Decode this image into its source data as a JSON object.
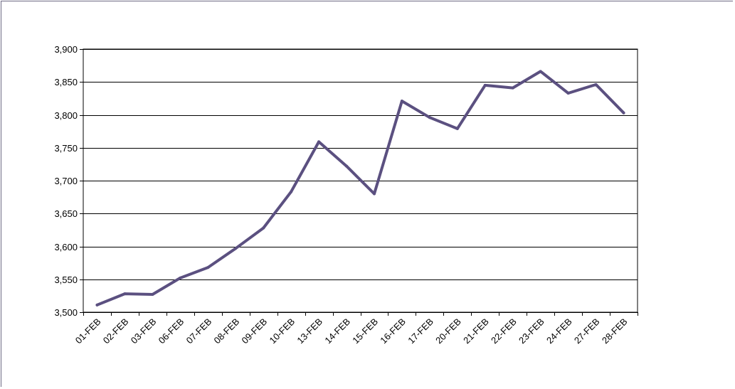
{
  "chart_data": {
    "type": "line",
    "title": "",
    "xlabel": "",
    "ylabel": "",
    "categories": [
      "01-FEB",
      "02-FEB",
      "03-FEB",
      "06-FEB",
      "07-FEB",
      "08-FEB",
      "09-FEB",
      "10-FEB",
      "13-FEB",
      "14-FEB",
      "15-FEB",
      "16-FEB",
      "17-FEB",
      "20-FEB",
      "21-FEB",
      "22-FEB",
      "23-FEB",
      "24-FEB",
      "27-FEB",
      "28-FEB"
    ],
    "series": [
      {
        "values": [
          3511,
          3528,
          3527,
          3552,
          3568,
          3597,
          3628,
          3683,
          3759,
          3722,
          3680,
          3821,
          3796,
          3779,
          3845,
          3841,
          3866,
          3833,
          3846,
          3803
        ]
      }
    ],
    "ylim": [
      3500,
      3900
    ],
    "yticks": [
      3500,
      3550,
      3600,
      3650,
      3700,
      3750,
      3800,
      3850,
      3900
    ],
    "ytick_labels": [
      "3,500",
      "3,550",
      "3,600",
      "3,650",
      "3,700",
      "3,750",
      "3,800",
      "3,850",
      "3,900"
    ],
    "grid": true,
    "legend": "none",
    "colors": {
      "line": "#5b5080",
      "grid": "#000000",
      "frame": "#6d6a84"
    }
  }
}
